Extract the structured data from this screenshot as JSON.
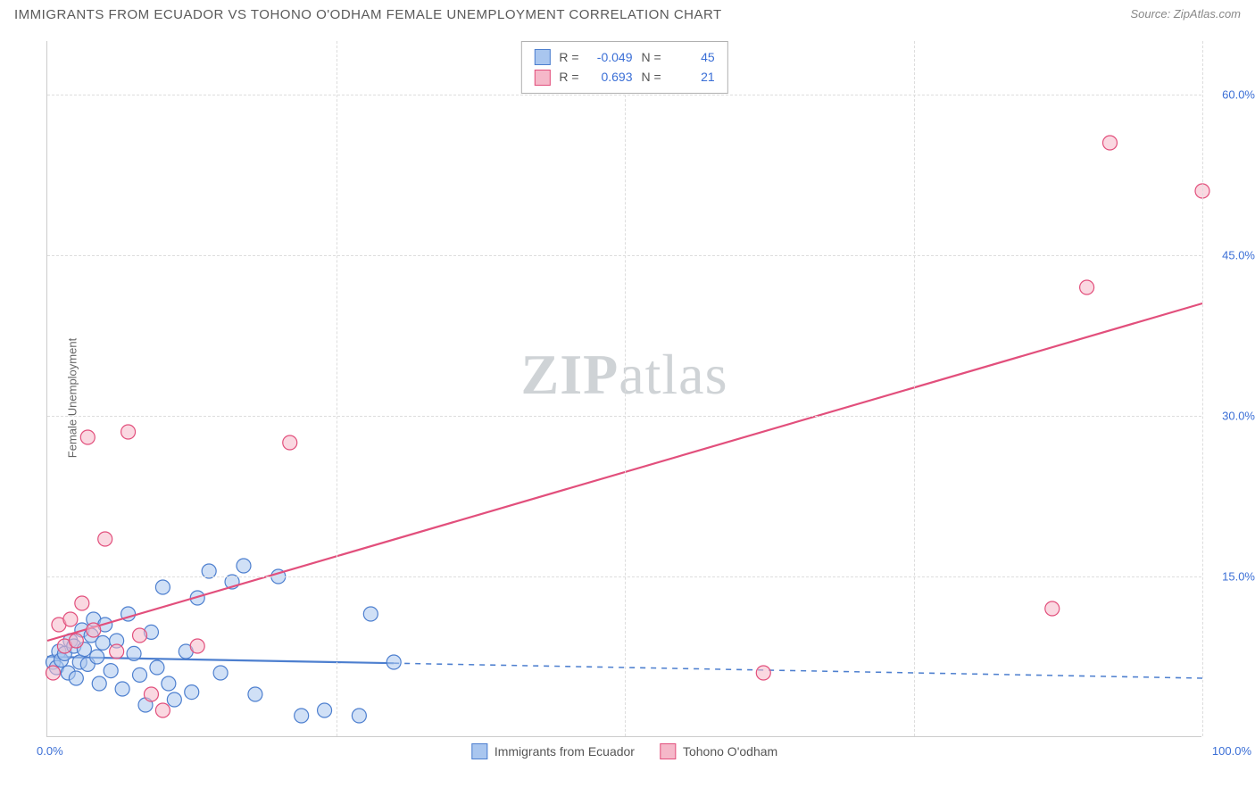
{
  "title": "IMMIGRANTS FROM ECUADOR VS TOHONO O'ODHAM FEMALE UNEMPLOYMENT CORRELATION CHART",
  "source": "Source: ZipAtlas.com",
  "watermark": {
    "left": "ZIP",
    "right": "atlas"
  },
  "y_axis_label": "Female Unemployment",
  "x_ticks": {
    "min": "0.0%",
    "max": "100.0%"
  },
  "y_ticks": [
    "15.0%",
    "30.0%",
    "45.0%",
    "60.0%"
  ],
  "chart": {
    "type": "scatter",
    "xlim": [
      0,
      100
    ],
    "ylim": [
      0,
      65
    ],
    "y_gridlines": [
      15,
      30,
      45,
      60
    ],
    "x_gridlines": [
      25,
      50,
      75,
      100
    ],
    "background_color": "#ffffff",
    "grid_color": "#dddddd",
    "axis_color": "#cccccc",
    "tick_color": "#3b6fd6",
    "marker_radius": 8,
    "marker_stroke_width": 1.2,
    "line_width": 2.2
  },
  "series": [
    {
      "label": "Immigrants from Ecuador",
      "fill": "#a9c6ef",
      "stroke": "#4d7fcf",
      "fill_opacity": 0.55,
      "R": "-0.049",
      "N": "45",
      "trend": {
        "x1": 0,
        "y1": 7.5,
        "x2": 100,
        "y2": 5.5,
        "solid_until_x": 30
      },
      "points": [
        [
          0.5,
          7.0
        ],
        [
          0.8,
          6.5
        ],
        [
          1.0,
          8.0
        ],
        [
          1.2,
          7.2
        ],
        [
          1.5,
          7.8
        ],
        [
          1.8,
          6.0
        ],
        [
          2.0,
          9.0
        ],
        [
          2.3,
          8.5
        ],
        [
          2.5,
          5.5
        ],
        [
          2.8,
          7.0
        ],
        [
          3.0,
          10.0
        ],
        [
          3.2,
          8.2
        ],
        [
          3.5,
          6.8
        ],
        [
          3.8,
          9.5
        ],
        [
          4.0,
          11.0
        ],
        [
          4.3,
          7.5
        ],
        [
          4.5,
          5.0
        ],
        [
          4.8,
          8.8
        ],
        [
          5.0,
          10.5
        ],
        [
          5.5,
          6.2
        ],
        [
          6.0,
          9.0
        ],
        [
          6.5,
          4.5
        ],
        [
          7.0,
          11.5
        ],
        [
          7.5,
          7.8
        ],
        [
          8.0,
          5.8
        ],
        [
          8.5,
          3.0
        ],
        [
          9.0,
          9.8
        ],
        [
          9.5,
          6.5
        ],
        [
          10.0,
          14.0
        ],
        [
          10.5,
          5.0
        ],
        [
          11.0,
          3.5
        ],
        [
          12.0,
          8.0
        ],
        [
          12.5,
          4.2
        ],
        [
          13.0,
          13.0
        ],
        [
          14.0,
          15.5
        ],
        [
          15.0,
          6.0
        ],
        [
          16.0,
          14.5
        ],
        [
          17.0,
          16.0
        ],
        [
          18.0,
          4.0
        ],
        [
          20.0,
          15.0
        ],
        [
          22.0,
          2.0
        ],
        [
          24.0,
          2.5
        ],
        [
          27.0,
          2.0
        ],
        [
          28.0,
          11.5
        ],
        [
          30.0,
          7.0
        ]
      ]
    },
    {
      "label": "Tohono O'odham",
      "fill": "#f5b8c9",
      "stroke": "#e24f7c",
      "fill_opacity": 0.55,
      "R": "0.693",
      "N": "21",
      "trend": {
        "x1": 0,
        "y1": 9.0,
        "x2": 100,
        "y2": 40.5,
        "solid_until_x": 100
      },
      "points": [
        [
          0.5,
          6.0
        ],
        [
          1.0,
          10.5
        ],
        [
          1.5,
          8.5
        ],
        [
          2.0,
          11.0
        ],
        [
          2.5,
          9.0
        ],
        [
          3.0,
          12.5
        ],
        [
          3.5,
          28.0
        ],
        [
          4.0,
          10.0
        ],
        [
          5.0,
          18.5
        ],
        [
          6.0,
          8.0
        ],
        [
          7.0,
          28.5
        ],
        [
          8.0,
          9.5
        ],
        [
          9.0,
          4.0
        ],
        [
          10.0,
          2.5
        ],
        [
          13.0,
          8.5
        ],
        [
          21.0,
          27.5
        ],
        [
          62.0,
          6.0
        ],
        [
          87.0,
          12.0
        ],
        [
          90.0,
          42.0
        ],
        [
          92.0,
          55.5
        ],
        [
          100.0,
          51.0
        ]
      ]
    }
  ],
  "legend_top": {
    "r_label": "R =",
    "n_label": "N ="
  }
}
